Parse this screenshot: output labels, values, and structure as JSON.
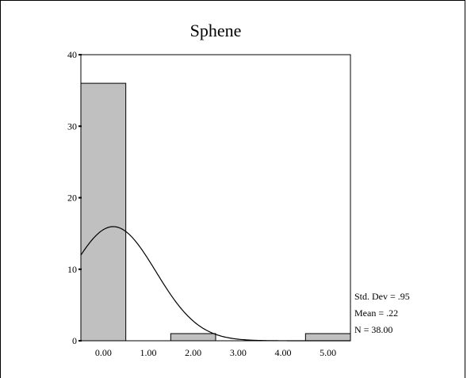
{
  "chart_data": {
    "type": "bar",
    "title": "Sphene",
    "xlabel": "",
    "ylabel": "",
    "categories": [
      "0.00",
      "1.00",
      "2.00",
      "3.00",
      "4.00",
      "5.00"
    ],
    "bin_centers": [
      0,
      1,
      2,
      3,
      4,
      5
    ],
    "bin_width": 1,
    "values": [
      36,
      0,
      1,
      0,
      0,
      1
    ],
    "xlim": [
      -0.5,
      5.5
    ],
    "ylim": [
      0,
      40
    ],
    "y_ticks": [
      "0",
      "10",
      "20",
      "30",
      "40"
    ],
    "y_tick_values": [
      0,
      10,
      20,
      30,
      40
    ],
    "grid": false,
    "bar_color": "#c0c0c0",
    "normal_curve": {
      "mean": 0.22,
      "sd": 0.95,
      "n": 38
    },
    "stats": [
      "Std. Dev = .95",
      "Mean = .22",
      "N = 38.00"
    ]
  }
}
